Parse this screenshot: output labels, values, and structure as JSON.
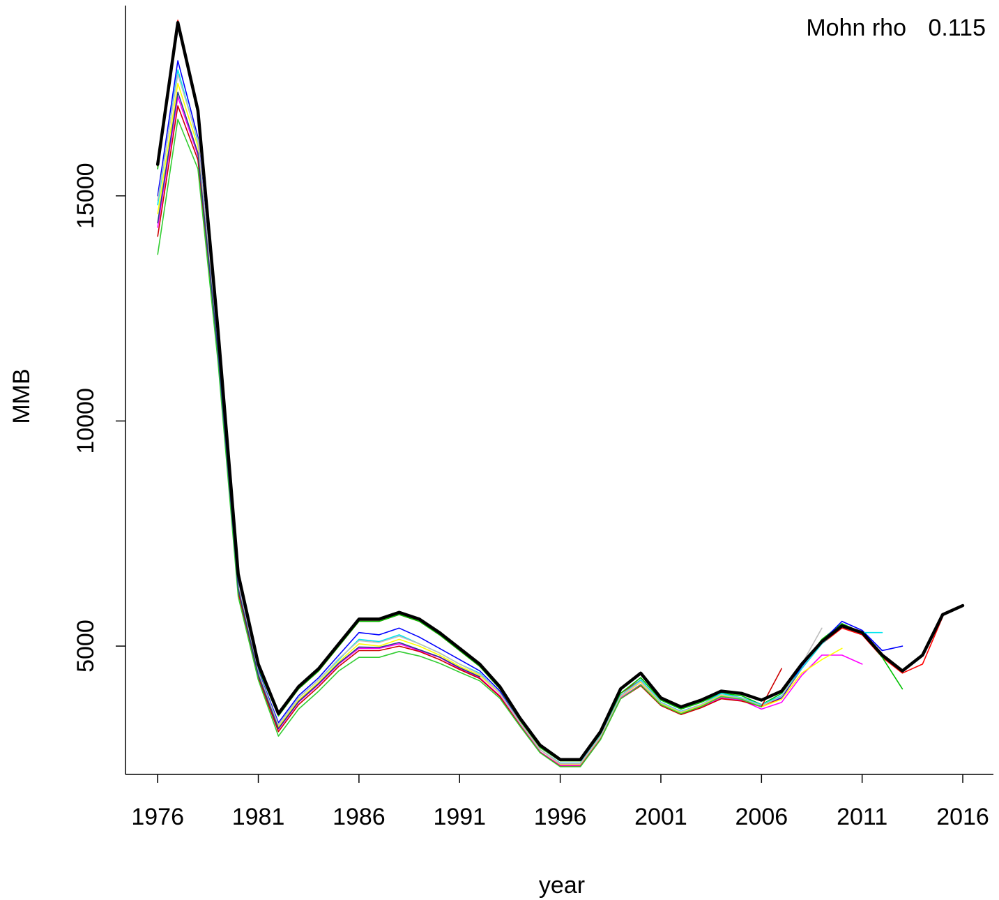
{
  "chart_data": {
    "type": "line",
    "title": "",
    "xlabel": "year",
    "ylabel": "MMB",
    "xlim": [
      1974.4,
      2017.8
    ],
    "ylim": [
      2150,
      19350
    ],
    "x_ticks": [
      1976,
      1981,
      1986,
      1991,
      1996,
      2001,
      2006,
      2011,
      2016
    ],
    "x_tick_labels": [
      "1976",
      "1981",
      "1986",
      "1991",
      "1996",
      "2001",
      "2006",
      "2011",
      "2016"
    ],
    "y_ticks": [
      5000,
      10000,
      15000
    ],
    "y_tick_labels": [
      "5000",
      "10000",
      "15000"
    ],
    "annotation": {
      "label": "Mohn rho",
      "value": "0.115"
    },
    "grid": false,
    "legend": "none",
    "series": [
      {
        "color": "#000000",
        "width": 4.5,
        "x": [
          1976,
          1977,
          1978,
          1979,
          1980,
          1981,
          1982,
          1983,
          1984,
          1985,
          1986,
          1987,
          1988,
          1989,
          1990,
          1991,
          1992,
          1993,
          1994,
          1995,
          1996,
          1997,
          1998,
          1999,
          2000,
          2001,
          2002,
          2003,
          2004,
          2005,
          2006,
          2007,
          2008,
          2009,
          2010,
          2011,
          2012,
          2013,
          2014,
          2015,
          2016
        ],
        "y": [
          15700,
          18850,
          16900,
          12000,
          6600,
          4600,
          3500,
          4100,
          4500,
          5050,
          5600,
          5600,
          5750,
          5600,
          5300,
          4950,
          4600,
          4100,
          3400,
          2800,
          2480,
          2480,
          3100,
          4050,
          4400,
          3850,
          3650,
          3800,
          4000,
          3950,
          3800,
          4000,
          4600,
          5100,
          5450,
          5300,
          4800,
          4450,
          4800,
          5700,
          5900
        ]
      },
      {
        "color": "#ff0000",
        "width": 1.6,
        "x": [
          1976,
          1977,
          1978,
          1979,
          1980,
          1981,
          1982,
          1983,
          1984,
          1985,
          1986,
          1987,
          1988,
          1989,
          1990,
          1991,
          1992,
          1993,
          1994,
          1995,
          1996,
          1997,
          1998,
          1999,
          2000,
          2001,
          2002,
          2003,
          2004,
          2005,
          2006,
          2007,
          2008,
          2009,
          2010,
          2011,
          2012,
          2013,
          2014,
          2015
        ],
        "y": [
          15650,
          18900,
          16850,
          11900,
          6550,
          4550,
          3450,
          4050,
          4450,
          5000,
          5550,
          5550,
          5700,
          5550,
          5250,
          4900,
          4550,
          4050,
          3350,
          2750,
          2450,
          2450,
          3050,
          3950,
          4250,
          3700,
          3500,
          3650,
          3850,
          3800,
          3650,
          3850,
          4500,
          5050,
          5400,
          5250,
          4750,
          4400,
          4600,
          5650
        ]
      },
      {
        "color": "#00c000",
        "width": 1.6,
        "x": [
          1976,
          1977,
          1978,
          1979,
          1980,
          1981,
          1982,
          1983,
          1984,
          1985,
          1986,
          1987,
          1988,
          1989,
          1990,
          1991,
          1992,
          1993,
          1994,
          1995,
          1996,
          1997,
          1998,
          1999,
          2000,
          2001,
          2002,
          2003,
          2004,
          2005,
          2006,
          2007,
          2008,
          2009,
          2010,
          2011,
          2012,
          2013
        ],
        "y": [
          15600,
          18800,
          16800,
          11850,
          6500,
          4500,
          3450,
          4050,
          4450,
          5000,
          5550,
          5550,
          5700,
          5550,
          5250,
          4900,
          4550,
          4050,
          3350,
          2750,
          2450,
          2450,
          3050,
          3950,
          4300,
          3800,
          3600,
          3750,
          3950,
          3900,
          3700,
          3950,
          4550,
          5150,
          5500,
          5300,
          4750,
          4050
        ]
      },
      {
        "color": "#0000ff",
        "width": 1.6,
        "x": [
          1976,
          1977,
          1978,
          1979,
          1980,
          1981,
          1982,
          1983,
          1984,
          1985,
          1986,
          1987,
          1988,
          1989,
          1990,
          1991,
          1992,
          1993,
          1994,
          1995,
          1996,
          1997,
          1998,
          1999,
          2000,
          2001,
          2002,
          2003,
          2004,
          2005,
          2006,
          2007,
          2008,
          2009,
          2010,
          2011,
          2012,
          2013
        ],
        "y": [
          15000,
          18000,
          16300,
          11700,
          6400,
          4450,
          3300,
          3900,
          4300,
          4800,
          5300,
          5250,
          5400,
          5200,
          4950,
          4700,
          4450,
          4000,
          3300,
          2700,
          2400,
          2400,
          3000,
          3900,
          4250,
          3750,
          3550,
          3700,
          3900,
          3850,
          3700,
          3850,
          4550,
          5100,
          5550,
          5350,
          4900,
          5000
        ]
      },
      {
        "color": "#00e5ee",
        "width": 1.6,
        "x": [
          1976,
          1977,
          1978,
          1979,
          1980,
          1981,
          1982,
          1983,
          1984,
          1985,
          1986,
          1987,
          1988,
          1989,
          1990,
          1991,
          1992,
          1993,
          1994,
          1995,
          1996,
          1997,
          1998,
          1999,
          2000,
          2001,
          2002,
          2003,
          2004,
          2005,
          2006,
          2007,
          2008,
          2009,
          2010,
          2011,
          2012
        ],
        "y": [
          14800,
          17800,
          16200,
          11650,
          6350,
          4400,
          3250,
          3850,
          4250,
          4700,
          5150,
          5100,
          5250,
          5050,
          4850,
          4600,
          4400,
          3950,
          3300,
          2700,
          2400,
          2400,
          3000,
          3900,
          4250,
          3750,
          3550,
          3700,
          3950,
          3850,
          3700,
          3900,
          4500,
          5050,
          5450,
          5300,
          5300
        ]
      },
      {
        "color": "#ff00ff",
        "width": 1.6,
        "x": [
          1976,
          1977,
          1978,
          1979,
          1980,
          1981,
          1982,
          1983,
          1984,
          1985,
          1986,
          1987,
          1988,
          1989,
          1990,
          1991,
          1992,
          1993,
          1994,
          1995,
          1996,
          1997,
          1998,
          1999,
          2000,
          2001,
          2002,
          2003,
          2004,
          2005,
          2006,
          2007,
          2008,
          2009,
          2010,
          2011
        ],
        "y": [
          14300,
          17200,
          15900,
          11500,
          6250,
          4350,
          3150,
          3750,
          4150,
          4600,
          4950,
          4950,
          5050,
          4900,
          4750,
          4500,
          4300,
          3900,
          3250,
          2650,
          2350,
          2350,
          2950,
          3850,
          4150,
          3700,
          3500,
          3650,
          3850,
          3800,
          3600,
          3750,
          4350,
          4800,
          4800,
          4600
        ]
      },
      {
        "color": "#ffff00",
        "width": 1.6,
        "x": [
          1976,
          1977,
          1978,
          1979,
          1980,
          1981,
          1982,
          1983,
          1984,
          1985,
          1986,
          1987,
          1988,
          1989,
          1990,
          1991,
          1992,
          1993,
          1994,
          1995,
          1996,
          1997,
          1998,
          1999,
          2000,
          2001,
          2002,
          2003,
          2004,
          2005,
          2006,
          2007,
          2008,
          2009,
          2010
        ],
        "y": [
          14600,
          17500,
          16100,
          11600,
          6300,
          4380,
          3200,
          3800,
          4200,
          4650,
          5050,
          5000,
          5150,
          5000,
          4800,
          4550,
          4350,
          3950,
          3300,
          2700,
          2380,
          2380,
          2980,
          3880,
          4200,
          3720,
          3520,
          3680,
          3900,
          3820,
          3650,
          3820,
          4400,
          4700,
          4950
        ]
      },
      {
        "color": "#bebebe",
        "width": 1.6,
        "x": [
          1976,
          1977,
          1978,
          1979,
          1980,
          1981,
          1982,
          1983,
          1984,
          1985,
          1986,
          1987,
          1988,
          1989,
          1990,
          1991,
          1992,
          1993,
          1994,
          1995,
          1996,
          1997,
          1998,
          1999,
          2000,
          2001,
          2002,
          2003,
          2004,
          2005,
          2006,
          2007,
          2008,
          2009
        ],
        "y": [
          14900,
          17700,
          16250,
          11650,
          6380,
          4420,
          3250,
          3850,
          4250,
          4720,
          5120,
          5080,
          5220,
          5050,
          4850,
          4600,
          4380,
          3960,
          3300,
          2700,
          2390,
          2390,
          2990,
          3890,
          4220,
          3740,
          3540,
          3700,
          3920,
          3840,
          3680,
          3880,
          4600,
          5400
        ]
      },
      {
        "color": "#cd0000",
        "width": 1.6,
        "x": [
          1976,
          1977,
          1978,
          1979,
          1980,
          1981,
          1982,
          1983,
          1984,
          1985,
          1986,
          1987,
          1988,
          1989,
          1990,
          1991,
          1992,
          1993,
          1994,
          1995,
          1996,
          1997,
          1998,
          1999,
          2000,
          2001,
          2002,
          2003,
          2004,
          2005,
          2006,
          2007
        ],
        "y": [
          14100,
          17000,
          15800,
          11450,
          6200,
          4300,
          3100,
          3700,
          4100,
          4550,
          4900,
          4900,
          5000,
          4880,
          4700,
          4480,
          4280,
          3880,
          3240,
          2640,
          2330,
          2330,
          2930,
          3830,
          4120,
          3680,
          3480,
          3630,
          3830,
          3780,
          3660,
          4500
        ]
      },
      {
        "color": "#32cd32",
        "width": 1.6,
        "x": [
          1976,
          1977,
          1978,
          1979,
          1980,
          1981,
          1982,
          1983,
          1984,
          1985,
          1986,
          1987,
          1988,
          1989,
          1990,
          1991,
          1992,
          1993,
          1994,
          1995,
          1996,
          1997,
          1998,
          1999,
          2000,
          2001,
          2002,
          2003,
          2004,
          2005,
          2006
        ],
        "y": [
          13700,
          16700,
          15600,
          11300,
          6100,
          4250,
          3000,
          3600,
          4000,
          4450,
          4750,
          4750,
          4880,
          4780,
          4620,
          4420,
          4230,
          3840,
          3220,
          2630,
          2320,
          2320,
          2920,
          3830,
          4140,
          3700,
          3500,
          3660,
          3880,
          3820,
          3650
        ]
      },
      {
        "color": "#27408b",
        "width": 1.6,
        "x": [
          1976,
          1977,
          1978,
          1979,
          1980,
          1981,
          1982,
          1983,
          1984,
          1985,
          1986,
          1987,
          1988,
          1989,
          1990,
          1991,
          1992
        ],
        "y": [
          14400,
          17300,
          15950,
          11520,
          6280,
          4360,
          3170,
          3770,
          4170,
          4620,
          4980,
          4970,
          5080,
          4920,
          4760,
          4520,
          4320
        ]
      }
    ]
  }
}
